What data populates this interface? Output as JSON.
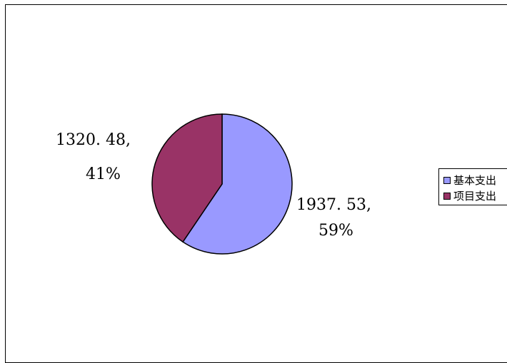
{
  "chart_data": {
    "type": "pie",
    "categories": [
      "基本支出",
      "项目支出"
    ],
    "values": [
      1937.53,
      1320.48
    ],
    "percentages": [
      "59%",
      "41%"
    ],
    "data_labels": [
      {
        "value": "1937. 53,",
        "percent": "59%"
      },
      {
        "value": "1320. 48,",
        "percent": "41%"
      }
    ],
    "colors": [
      "#9999ff",
      "#993366"
    ],
    "legend_position": "right",
    "title": ""
  }
}
